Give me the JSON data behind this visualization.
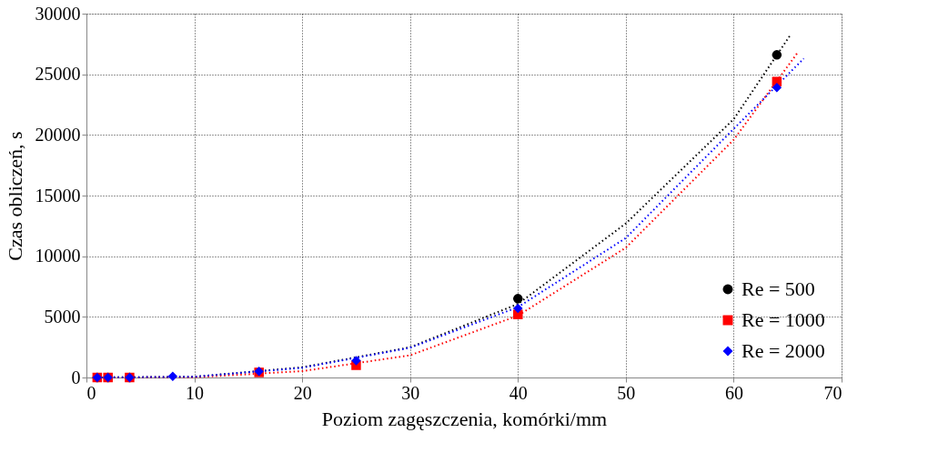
{
  "chart_data": {
    "type": "scatter",
    "xlabel": "Poziom zagęszczenia, komórki/mm",
    "ylabel": "Czas obliczeń, s",
    "xlim": [
      0,
      70
    ],
    "xticks": [
      0,
      10,
      20,
      30,
      40,
      50,
      60,
      70
    ],
    "ylim": [
      0,
      30000
    ],
    "yticks": [
      0,
      5000,
      10000,
      15000,
      20000,
      25000,
      30000
    ],
    "grid": true,
    "legend": "bottom right",
    "x": [
      1,
      2,
      4,
      8,
      16,
      25,
      40,
      64
    ],
    "series": [
      {
        "type": "line",
        "color": "#000000",
        "line_style": "dotted",
        "marker": "none",
        "x": [
          1,
          10,
          20,
          30,
          40,
          50,
          60,
          65.3
        ],
        "values": [
          0,
          60,
          840,
          2490,
          6060,
          12700,
          21300,
          28300
        ]
      },
      {
        "type": "line",
        "color": "#ff0000",
        "line_style": "dotted",
        "marker": "none",
        "x": [
          1,
          10,
          20,
          30,
          40,
          50,
          60,
          65.9
        ],
        "values": [
          0,
          20,
          520,
          1830,
          5100,
          10700,
          19600,
          26750
        ]
      },
      {
        "type": "line",
        "color": "#0000ff",
        "line_style": "dotted",
        "marker": "none",
        "x": [
          1,
          10,
          20,
          30,
          40,
          50,
          60,
          66.5
        ],
        "values": [
          0,
          60,
          800,
          2450,
          5800,
          11500,
          20500,
          26300
        ]
      },
      {
        "name": "Re = 500",
        "color": "#000000",
        "marker": "circle",
        "values": [
          0,
          0,
          0,
          null,
          null,
          null,
          6500,
          26600
        ]
      },
      {
        "name": "Re = 1000",
        "color": "#ff0000",
        "marker": "square",
        "values": [
          0,
          0,
          0,
          null,
          420,
          1010,
          5200,
          24400
        ]
      },
      {
        "name": "Re = 2000",
        "color": "#0000ff",
        "marker": "diamond",
        "values": [
          0,
          0,
          0,
          100,
          500,
          1380,
          5700,
          23900
        ]
      }
    ]
  }
}
